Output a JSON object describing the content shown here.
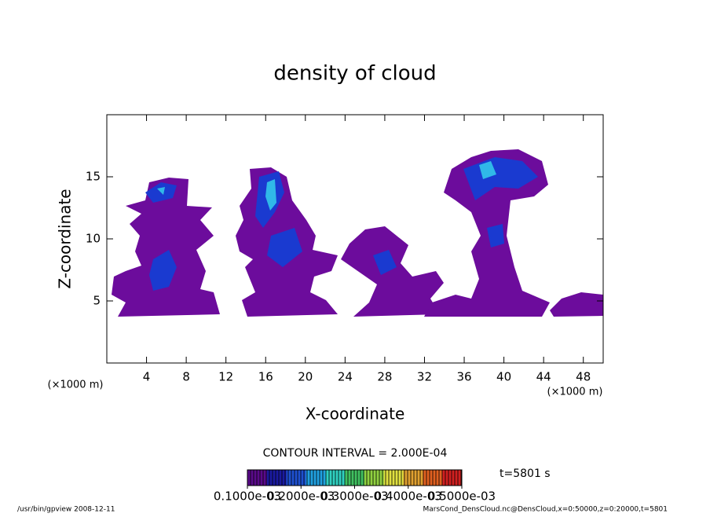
{
  "chart_data": {
    "type": "contour",
    "title": "density of cloud",
    "x_label": "X-coordinate",
    "y_label": "Z-coordinate",
    "x_unit": "(×1000 m)",
    "y_unit": "(×1000 m)",
    "xlim": [
      0,
      50
    ],
    "ylim": [
      0,
      20
    ],
    "xticks": [
      4,
      8,
      12,
      16,
      20,
      24,
      28,
      32,
      36,
      40,
      44,
      48
    ],
    "yticks": [
      5,
      10,
      15
    ],
    "contour_interval": "CONTOUR INTERVAL = 2.000E-04",
    "time_label": "t=5801 s",
    "colorbar": {
      "lim": [
        0.0001,
        0.0005
      ],
      "ticks": [
        {
          "value": 0.0001,
          "label": "0.1000e-03"
        },
        {
          "value": 0.0002,
          "label": "0.2000e-03"
        },
        {
          "value": 0.0003,
          "label": "0.3000e-03"
        },
        {
          "value": 0.0004,
          "label": "0.4000e-03"
        },
        {
          "value": 0.0005,
          "label": "0.5000e-03"
        }
      ],
      "colors": [
        "#5a0a8a",
        "#1a1aa0",
        "#1e50d0",
        "#20a0e0",
        "#30d0c0",
        "#40c060",
        "#90d040",
        "#e0e040",
        "#e0a030",
        "#e06020",
        "#d02020"
      ]
    },
    "footer_left": "/usr/bin/gpview  2008-12-11",
    "footer_right": "MarsCond_DensCloud.nc@DensCloud,x=0:50000,z=0:20000,t=5801"
  }
}
